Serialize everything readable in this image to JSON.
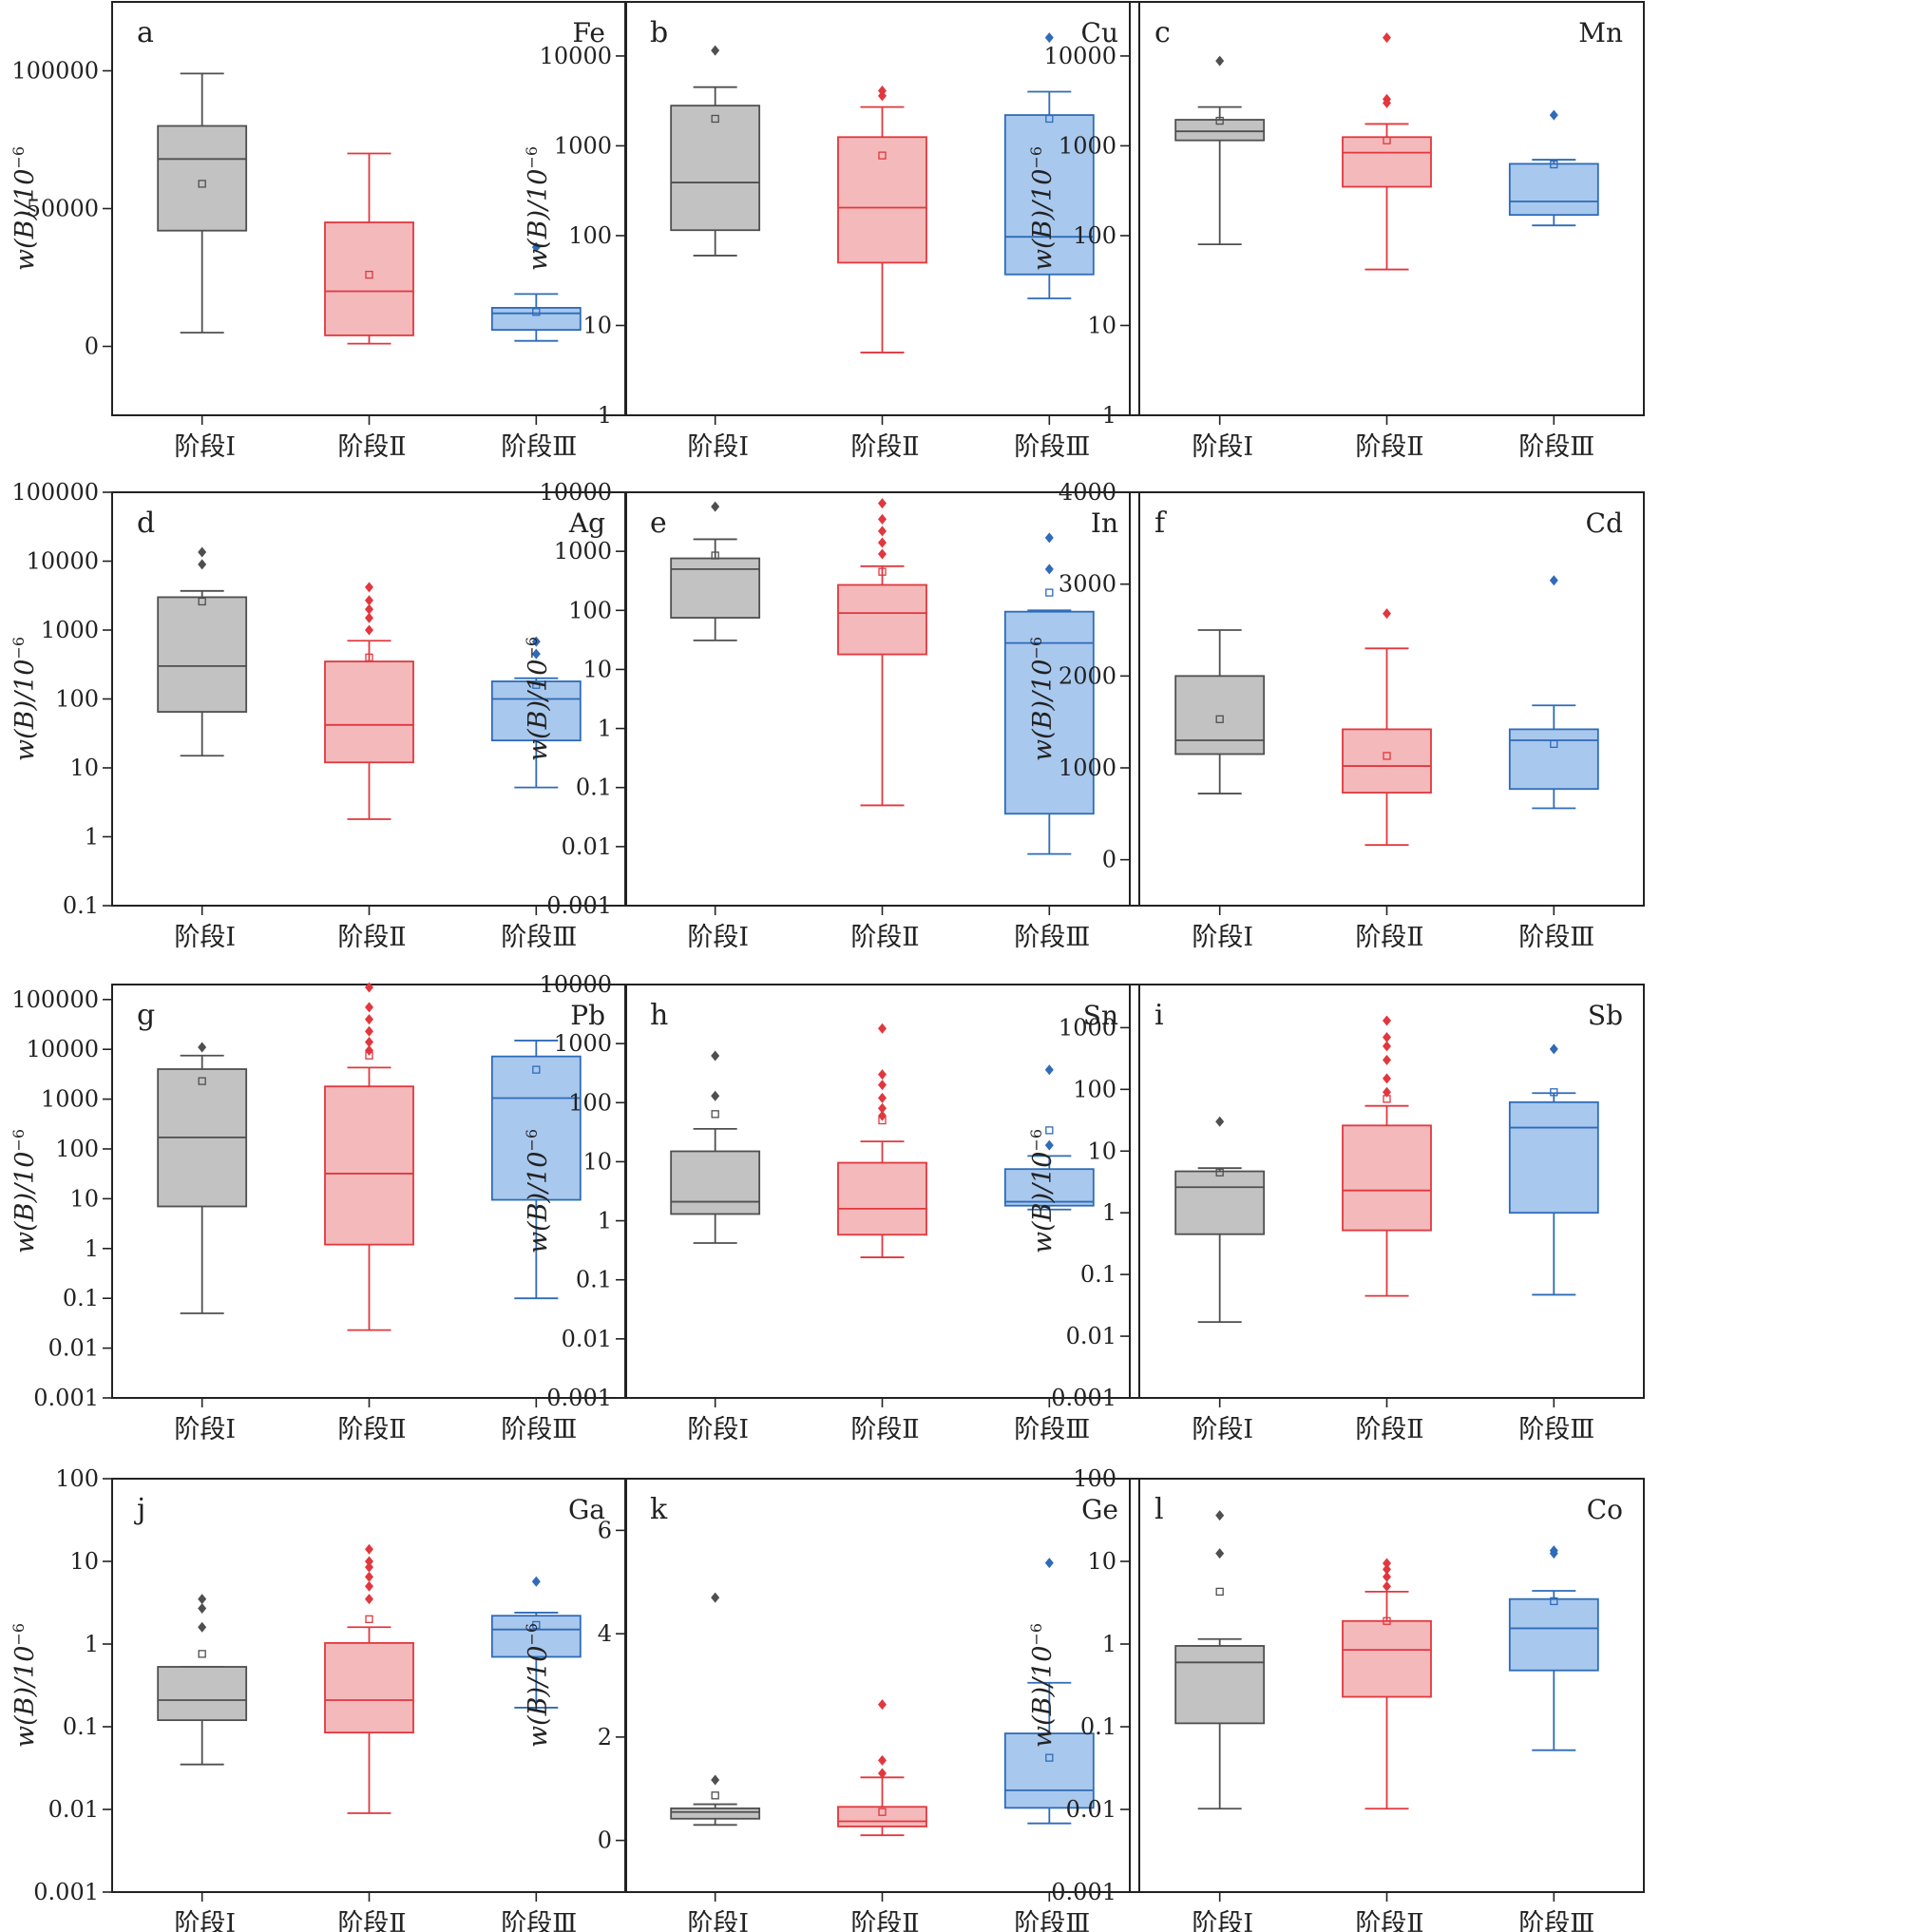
{
  "figure": {
    "categories": [
      "阶段Ⅰ",
      "阶段Ⅱ",
      "阶段Ⅲ"
    ],
    "ylabel_main": "w(B)/10",
    "ylabel_exp": "−6",
    "colors": {
      "stage1_fill": "#c2c2c2",
      "stage1_line": "#4f4f4f",
      "stage2_fill": "#f4b9bb",
      "stage2_line": "#e0383e",
      "stage3_fill": "#a9c8ee",
      "stage3_line": "#2e6bb8"
    }
  },
  "chart_data": [
    {
      "type": "box",
      "panel": "a",
      "element": "Fe",
      "scale": "linear",
      "ylim": [
        -25000,
        125000
      ],
      "yticks": [
        0,
        50000,
        100000
      ],
      "ytick_labels": [
        "0",
        "50000",
        "100000"
      ],
      "categories": [
        "阶段Ⅰ",
        "阶段Ⅱ",
        "阶段Ⅲ"
      ],
      "series": [
        {
          "whisker_low": 5000,
          "q1": 42000,
          "median": 68000,
          "q3": 80000,
          "whisker_high": 99000,
          "mean": 59000,
          "outliers": []
        },
        {
          "whisker_low": 1000,
          "q1": 4000,
          "median": 20000,
          "q3": 45000,
          "whisker_high": 70000,
          "mean": 26000,
          "outliers": []
        },
        {
          "whisker_low": 2000,
          "q1": 6000,
          "median": 12000,
          "q3": 14000,
          "whisker_high": 19000,
          "mean": 12500,
          "outliers": [
            36000
          ]
        }
      ]
    },
    {
      "type": "box",
      "panel": "b",
      "element": "Cu",
      "scale": "log",
      "ylim": [
        1,
        40000
      ],
      "yticks": [
        1,
        10,
        100,
        1000,
        10000
      ],
      "ytick_labels": [
        "1",
        "10",
        "100",
        "1000",
        "10000"
      ],
      "categories": [
        "阶段Ⅰ",
        "阶段Ⅱ",
        "阶段Ⅲ"
      ],
      "series": [
        {
          "whisker_low": 60,
          "q1": 115,
          "median": 390,
          "q3": 2800,
          "whisker_high": 4500,
          "mean": 2000,
          "outliers": [
            11500
          ]
        },
        {
          "whisker_low": 5,
          "q1": 50,
          "median": 205,
          "q3": 1250,
          "whisker_high": 2700,
          "mean": 780,
          "outliers": [
            3600,
            4100
          ]
        },
        {
          "whisker_low": 20,
          "q1": 37,
          "median": 97,
          "q3": 2200,
          "whisker_high": 4000,
          "mean": 2000,
          "outliers": [
            16000
          ]
        }
      ]
    },
    {
      "type": "box",
      "panel": "c",
      "element": "Mn",
      "scale": "log",
      "ylim": [
        1,
        40000
      ],
      "yticks": [
        1,
        10,
        100,
        1000,
        10000
      ],
      "ytick_labels": [
        "1",
        "10",
        "100",
        "1000",
        "10000"
      ],
      "categories": [
        "阶段Ⅰ",
        "阶段Ⅱ",
        "阶段Ⅲ"
      ],
      "series": [
        {
          "whisker_low": 80,
          "q1": 1150,
          "median": 1450,
          "q3": 1950,
          "whisker_high": 2700,
          "mean": 1900,
          "outliers": [
            8800
          ]
        },
        {
          "whisker_low": 42,
          "q1": 350,
          "median": 840,
          "q3": 1250,
          "whisker_high": 1750,
          "mean": 1150,
          "outliers": [
            3000,
            3300,
            16000
          ]
        },
        {
          "whisker_low": 130,
          "q1": 170,
          "median": 240,
          "q3": 630,
          "whisker_high": 700,
          "mean": 620,
          "outliers": [
            2200
          ]
        }
      ]
    },
    {
      "type": "box",
      "panel": "d",
      "element": "Ag",
      "scale": "log",
      "ylim": [
        0.1,
        100000
      ],
      "yticks": [
        0.1,
        1,
        10,
        100,
        1000,
        10000,
        100000
      ],
      "ytick_labels": [
        "0.1",
        "1",
        "10",
        "100",
        "1000",
        "10000",
        "100000"
      ],
      "categories": [
        "阶段Ⅰ",
        "阶段Ⅱ",
        "阶段Ⅲ"
      ],
      "series": [
        {
          "whisker_low": 15,
          "q1": 65,
          "median": 300,
          "q3": 3000,
          "whisker_high": 3700,
          "mean": 2600,
          "outliers": [
            9000,
            13500
          ]
        },
        {
          "whisker_low": 1.8,
          "q1": 12,
          "median": 42,
          "q3": 350,
          "whisker_high": 700,
          "mean": 400,
          "outliers": [
            1000,
            1500,
            2000,
            2700,
            4200
          ]
        },
        {
          "whisker_low": 5.2,
          "q1": 25,
          "median": 100,
          "q3": 180,
          "whisker_high": 200,
          "mean": 160,
          "outliers": [
            450,
            680
          ]
        }
      ]
    },
    {
      "type": "box",
      "panel": "e",
      "element": "In",
      "scale": "log",
      "ylim": [
        0.001,
        10000
      ],
      "yticks": [
        0.001,
        0.01,
        0.1,
        1,
        10,
        100,
        1000,
        10000
      ],
      "ytick_labels": [
        "0.001",
        "0.01",
        "0.1",
        "1",
        "10",
        "100",
        "1000",
        "10000"
      ],
      "categories": [
        "阶段Ⅰ",
        "阶段Ⅱ",
        "阶段Ⅲ"
      ],
      "series": [
        {
          "whisker_low": 31,
          "q1": 75,
          "median": 500,
          "q3": 760,
          "whisker_high": 1600,
          "mean": 850,
          "outliers": [
            5700
          ]
        },
        {
          "whisker_low": 0.05,
          "q1": 18,
          "median": 90,
          "q3": 270,
          "whisker_high": 560,
          "mean": 450,
          "outliers": [
            900,
            1400,
            2200,
            3500,
            6500
          ]
        },
        {
          "whisker_low": 0.0075,
          "q1": 0.036,
          "median": 28,
          "q3": 95,
          "whisker_high": 100,
          "mean": 200,
          "outliers": [
            500,
            1700
          ]
        }
      ]
    },
    {
      "type": "box",
      "panel": "f",
      "element": "Cd",
      "scale": "linear",
      "ylim": [
        -500,
        4000
      ],
      "yticks": [
        0,
        1000,
        2000,
        3000,
        4000
      ],
      "ytick_labels": [
        "0",
        "1000",
        "2000",
        "3000",
        "4000"
      ],
      "categories": [
        "阶段Ⅰ",
        "阶段Ⅱ",
        "阶段Ⅲ"
      ],
      "series": [
        {
          "whisker_low": 720,
          "q1": 1150,
          "median": 1300,
          "q3": 2000,
          "whisker_high": 2500,
          "mean": 1530,
          "outliers": []
        },
        {
          "whisker_low": 160,
          "q1": 730,
          "median": 1020,
          "q3": 1420,
          "whisker_high": 2300,
          "mean": 1130,
          "outliers": [
            2680
          ]
        },
        {
          "whisker_low": 560,
          "q1": 770,
          "median": 1300,
          "q3": 1420,
          "whisker_high": 1680,
          "mean": 1260,
          "outliers": [
            3040
          ]
        }
      ]
    },
    {
      "type": "box",
      "panel": "g",
      "element": "Pb",
      "scale": "log",
      "ylim": [
        0.001,
        200000
      ],
      "yticks": [
        0.001,
        0.01,
        0.1,
        1,
        10,
        100,
        1000,
        10000,
        100000
      ],
      "ytick_labels": [
        "0.001",
        "0.01",
        "0.1",
        "1",
        "10",
        "100",
        "1000",
        "10000",
        "100000"
      ],
      "categories": [
        "阶段Ⅰ",
        "阶段Ⅱ",
        "阶段Ⅲ"
      ],
      "series": [
        {
          "whisker_low": 0.05,
          "q1": 7,
          "median": 170,
          "q3": 4000,
          "whisker_high": 7500,
          "mean": 2300,
          "outliers": [
            11000
          ]
        },
        {
          "whisker_low": 0.023,
          "q1": 1.2,
          "median": 32,
          "q3": 1800,
          "whisker_high": 4300,
          "mean": 7500,
          "outliers": [
            9500,
            14000,
            23000,
            40000,
            70000,
            175000
          ]
        },
        {
          "whisker_low": 0.1,
          "q1": 9.5,
          "median": 1050,
          "q3": 7200,
          "whisker_high": 15000,
          "mean": 3900,
          "outliers": []
        }
      ]
    },
    {
      "type": "box",
      "panel": "h",
      "element": "Sn",
      "scale": "log",
      "ylim": [
        0.001,
        10000
      ],
      "yticks": [
        0.001,
        0.01,
        0.1,
        1,
        10,
        100,
        1000,
        10000
      ],
      "ytick_labels": [
        "0.001",
        "0.01",
        "0.1",
        "1",
        "10",
        "100",
        "1000",
        "10000"
      ],
      "categories": [
        "阶段Ⅰ",
        "阶段Ⅱ",
        "阶段Ⅲ"
      ],
      "series": [
        {
          "whisker_low": 0.42,
          "q1": 1.3,
          "median": 2.1,
          "q3": 15,
          "whisker_high": 36,
          "mean": 64,
          "outliers": [
            130,
            620
          ]
        },
        {
          "whisker_low": 0.24,
          "q1": 0.58,
          "median": 1.6,
          "q3": 9.6,
          "whisker_high": 22,
          "mean": 50,
          "outliers": [
            60,
            80,
            120,
            200,
            300,
            1800
          ]
        },
        {
          "whisker_low": 1.55,
          "q1": 1.8,
          "median": 2.1,
          "q3": 7.5,
          "whisker_high": 12.5,
          "mean": 34,
          "outliers": [
            19,
            360
          ]
        }
      ]
    },
    {
      "type": "box",
      "panel": "i",
      "element": "Sb",
      "scale": "log",
      "ylim": [
        0.001,
        5000
      ],
      "yticks": [
        0.001,
        0.01,
        0.1,
        1,
        10,
        100,
        1000
      ],
      "ytick_labels": [
        "0.001",
        "0.01",
        "0.1",
        "1",
        "10",
        "100",
        "1000"
      ],
      "categories": [
        "阶段Ⅰ",
        "阶段Ⅱ",
        "阶段Ⅲ"
      ],
      "series": [
        {
          "whisker_low": 0.017,
          "q1": 0.45,
          "median": 2.6,
          "q3": 4.7,
          "whisker_high": 5.3,
          "mean": 4.5,
          "outliers": [
            30
          ]
        },
        {
          "whisker_low": 0.045,
          "q1": 0.52,
          "median": 2.3,
          "q3": 26,
          "whisker_high": 54,
          "mean": 70,
          "outliers": [
            90,
            150,
            300,
            500,
            700,
            1300
          ]
        },
        {
          "whisker_low": 0.047,
          "q1": 1,
          "median": 24,
          "q3": 62,
          "whisker_high": 87,
          "mean": 90,
          "outliers": [
            450
          ]
        }
      ]
    },
    {
      "type": "box",
      "panel": "j",
      "element": "Ga",
      "scale": "log",
      "ylim": [
        0.001,
        100
      ],
      "yticks": [
        0.001,
        0.01,
        0.1,
        1,
        10,
        100
      ],
      "ytick_labels": [
        "0.001",
        "0.01",
        "0.1",
        "1",
        "10",
        "100"
      ],
      "categories": [
        "阶段Ⅰ",
        "阶段Ⅱ",
        "阶段Ⅲ"
      ],
      "series": [
        {
          "whisker_low": 0.035,
          "q1": 0.12,
          "median": 0.21,
          "q3": 0.53,
          "whisker_high": 0.53,
          "mean": 0.76,
          "outliers": [
            1.6,
            2.7,
            3.5
          ]
        },
        {
          "whisker_low": 0.009,
          "q1": 0.085,
          "median": 0.21,
          "q3": 1.03,
          "whisker_high": 1.6,
          "mean": 2,
          "outliers": [
            3.5,
            5,
            6.5,
            8.5,
            10,
            14
          ]
        },
        {
          "whisker_low": 0.17,
          "q1": 0.7,
          "median": 1.5,
          "q3": 2.2,
          "whisker_high": 2.4,
          "mean": 1.7,
          "outliers": [
            5.7
          ]
        }
      ]
    },
    {
      "type": "box",
      "panel": "k",
      "element": "Ge",
      "scale": "linear",
      "ylim": [
        -1,
        7
      ],
      "yticks": [
        0,
        2,
        4,
        6
      ],
      "ytick_labels": [
        "0",
        "2",
        "4",
        "6"
      ],
      "categories": [
        "阶段Ⅰ",
        "阶段Ⅱ",
        "阶段Ⅲ"
      ],
      "series": [
        {
          "whisker_low": 0.3,
          "q1": 0.42,
          "median": 0.55,
          "q3": 0.62,
          "whisker_high": 0.7,
          "mean": 0.87,
          "outliers": [
            1.17,
            4.7
          ]
        },
        {
          "whisker_low": 0.1,
          "q1": 0.27,
          "median": 0.37,
          "q3": 0.65,
          "whisker_high": 1.22,
          "mean": 0.55,
          "outliers": [
            1.3,
            1.55,
            2.63
          ]
        },
        {
          "whisker_low": 0.33,
          "q1": 0.63,
          "median": 0.97,
          "q3": 2.07,
          "whisker_high": 3.05,
          "mean": 1.6,
          "outliers": [
            5.37
          ]
        }
      ]
    },
    {
      "type": "box",
      "panel": "l",
      "element": "Co",
      "scale": "log",
      "ylim": [
        0.001,
        100
      ],
      "yticks": [
        0.001,
        0.01,
        0.1,
        1,
        10,
        100
      ],
      "ytick_labels": [
        "0.001",
        "0.01",
        "0.1",
        "1",
        "10",
        "100"
      ],
      "categories": [
        "阶段Ⅰ",
        "阶段Ⅱ",
        "阶段Ⅲ"
      ],
      "series": [
        {
          "whisker_low": 0.0102,
          "q1": 0.11,
          "median": 0.6,
          "q3": 0.95,
          "whisker_high": 1.15,
          "mean": 4.3,
          "outliers": [
            12.5,
            36
          ]
        },
        {
          "whisker_low": 0.0102,
          "q1": 0.23,
          "median": 0.85,
          "q3": 1.9,
          "whisker_high": 4.3,
          "mean": 1.9,
          "outliers": [
            5,
            6.5,
            8,
            9.5
          ]
        },
        {
          "whisker_low": 0.052,
          "q1": 0.48,
          "median": 1.55,
          "q3": 3.5,
          "whisker_high": 4.4,
          "mean": 3.3,
          "outliers": [
            12.5,
            13.5
          ]
        }
      ]
    }
  ]
}
